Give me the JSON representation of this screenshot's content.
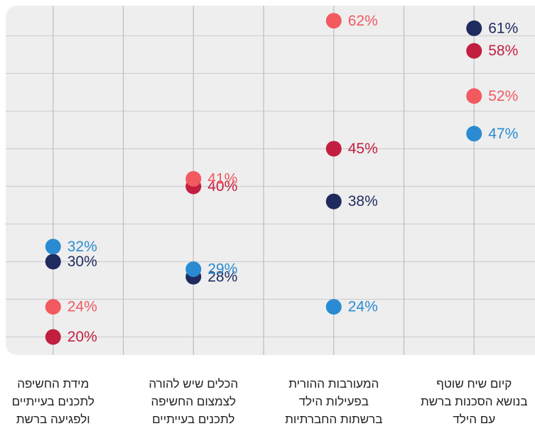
{
  "chart_data": {
    "type": "dot",
    "categories": [
      "מידת החשיפה\nלתכנים בעייתיים\nולפגיעה ברשת",
      "הכלים שיש להורה\nלצמצום החשיפה\nלתכנים בעייתיים",
      "המעורבות ההורית\nבפעילות הילד\nברשתות החברתיות",
      "קיום שיח שוטף\nבנושא הסכנות ברשת\nעם הילד"
    ],
    "series": [
      {
        "color": "#1f2a5e",
        "values": [
          30,
          28,
          38,
          61
        ],
        "value_labels": [
          "30%",
          "28%",
          "38%",
          "61%"
        ]
      },
      {
        "color": "#c21f40",
        "values": [
          20,
          40,
          45,
          58
        ],
        "value_labels": [
          "20%",
          "40%",
          "45%",
          "58%"
        ]
      },
      {
        "color": "#f25a60",
        "values": [
          24,
          41,
          62,
          52
        ],
        "value_labels": [
          "24%",
          "41%",
          "62%",
          "52%"
        ]
      },
      {
        "color": "#2a8bd2",
        "values": [
          32,
          29,
          24,
          47
        ],
        "value_labels": [
          "32%",
          "29%",
          "24%",
          "47%"
        ]
      }
    ],
    "ylim": [
      17.6,
      64
    ],
    "yticks": [
      20,
      25,
      30,
      35,
      40,
      45,
      50,
      55,
      60
    ],
    "grid": true
  }
}
